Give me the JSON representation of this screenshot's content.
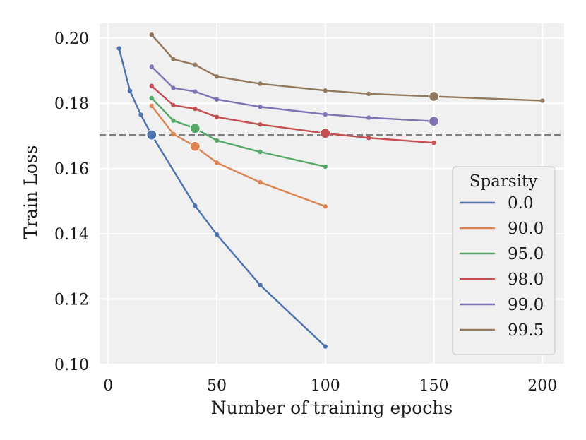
{
  "chart_data": {
    "type": "line",
    "title": "",
    "xlabel": "Number of training epochs",
    "ylabel": "Train Loss",
    "xlim": [
      -4,
      210
    ],
    "ylim": [
      0.1,
      0.2045
    ],
    "xticks": [
      0,
      50,
      100,
      150,
      200
    ],
    "yticks": [
      0.1,
      0.12,
      0.14,
      0.16,
      0.18,
      0.2
    ],
    "xtick_labels": [
      "0",
      "50",
      "100",
      "150",
      "200"
    ],
    "ytick_labels": [
      "0.10",
      "0.12",
      "0.14",
      "0.16",
      "0.18",
      "0.20"
    ],
    "grid": true,
    "reference_line": {
      "y": 0.1703,
      "style": "dashed",
      "color": "#808080"
    },
    "legend": {
      "title": "Sparsity",
      "location": "lower-right"
    },
    "series": [
      {
        "name": "0.0",
        "color": "#4c72b0",
        "x": [
          5,
          10,
          15,
          20,
          40,
          50,
          70,
          100
        ],
        "y": [
          0.1968,
          0.1838,
          0.1765,
          0.1703,
          0.1486,
          0.1398,
          0.1243,
          0.1055
        ],
        "highlight": {
          "x": 20,
          "y": 0.1703
        }
      },
      {
        "name": "90.0",
        "color": "#dd8452",
        "x": [
          20,
          30,
          40,
          50,
          70,
          100
        ],
        "y": [
          0.1792,
          0.1706,
          0.1668,
          0.1618,
          0.1558,
          0.1484
        ],
        "highlight": {
          "x": 40,
          "y": 0.1668
        }
      },
      {
        "name": "95.0",
        "color": "#55a868",
        "x": [
          20,
          30,
          40,
          50,
          70,
          100
        ],
        "y": [
          0.1816,
          0.1747,
          0.1723,
          0.1686,
          0.1651,
          0.1606
        ],
        "highlight": {
          "x": 40,
          "y": 0.1723
        }
      },
      {
        "name": "98.0",
        "color": "#c44e52",
        "x": [
          20,
          30,
          40,
          50,
          70,
          100,
          120,
          150
        ],
        "y": [
          0.1853,
          0.1794,
          0.1783,
          0.1758,
          0.1735,
          0.1708,
          0.1694,
          0.1679
        ],
        "highlight": {
          "x": 100,
          "y": 0.1708
        }
      },
      {
        "name": "99.0",
        "color": "#8172b3",
        "x": [
          20,
          30,
          40,
          50,
          70,
          100,
          120,
          150
        ],
        "y": [
          0.1912,
          0.1847,
          0.1836,
          0.1812,
          0.1789,
          0.1766,
          0.1756,
          0.1745
        ],
        "highlight": {
          "x": 150,
          "y": 0.1745
        }
      },
      {
        "name": "99.5",
        "color": "#937860",
        "x": [
          20,
          30,
          40,
          50,
          70,
          100,
          120,
          150,
          200
        ],
        "y": [
          0.201,
          0.1935,
          0.1918,
          0.1882,
          0.186,
          0.1839,
          0.1829,
          0.1821,
          0.1808
        ],
        "highlight": {
          "x": 150,
          "y": 0.1821
        }
      }
    ]
  }
}
